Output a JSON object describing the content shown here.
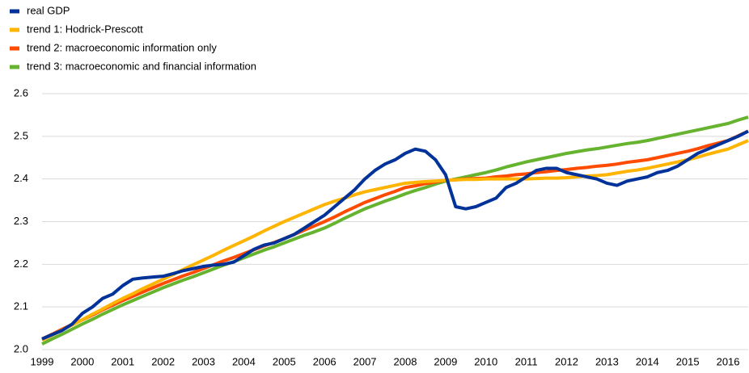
{
  "chart_data": {
    "type": "line",
    "categories": [
      "1999",
      null,
      null,
      null,
      "2000",
      null,
      null,
      null,
      "2001",
      null,
      null,
      null,
      "2002",
      null,
      null,
      null,
      "2003",
      null,
      null,
      null,
      "2004",
      null,
      null,
      null,
      "2005",
      null,
      null,
      null,
      "2006",
      null,
      null,
      null,
      "2007",
      null,
      null,
      null,
      "2008",
      null,
      null,
      null,
      "2009",
      null,
      null,
      null,
      "2010",
      null,
      null,
      null,
      "2011",
      null,
      null,
      null,
      "2012",
      null,
      null,
      null,
      "2013",
      null,
      null,
      null,
      "2014",
      null,
      null,
      null,
      "2015",
      null,
      null,
      null,
      "2016",
      null,
      null
    ],
    "series": [
      {
        "name": "real GDP",
        "color": "#003299",
        "values": [
          2.025,
          2.035,
          2.045,
          2.06,
          2.085,
          2.1,
          2.12,
          2.13,
          2.15,
          2.165,
          2.168,
          2.17,
          2.172,
          2.178,
          2.185,
          2.19,
          2.195,
          2.198,
          2.2,
          2.205,
          2.22,
          2.235,
          2.245,
          2.25,
          2.26,
          2.27,
          2.285,
          2.3,
          2.315,
          2.335,
          2.355,
          2.375,
          2.4,
          2.42,
          2.435,
          2.445,
          2.46,
          2.47,
          2.465,
          2.445,
          2.41,
          2.335,
          2.33,
          2.335,
          2.345,
          2.355,
          2.38,
          2.39,
          2.405,
          2.42,
          2.425,
          2.425,
          2.415,
          2.41,
          2.405,
          2.4,
          2.39,
          2.385,
          2.395,
          2.4,
          2.405,
          2.415,
          2.42,
          2.43,
          2.445,
          2.46,
          2.47,
          2.48,
          2.49,
          2.5,
          2.512
        ]
      },
      {
        "name": "trend 1: Hodrick-Prescott",
        "color": "#ffb400",
        "values": [
          2.022,
          2.034,
          2.046,
          2.058,
          2.07,
          2.083,
          2.095,
          2.108,
          2.12,
          2.131,
          2.143,
          2.154,
          2.165,
          2.176,
          2.188,
          2.199,
          2.21,
          2.221,
          2.233,
          2.244,
          2.255,
          2.266,
          2.278,
          2.289,
          2.3,
          2.31,
          2.32,
          2.33,
          2.34,
          2.348,
          2.355,
          2.363,
          2.37,
          2.375,
          2.38,
          2.385,
          2.39,
          2.392,
          2.394,
          2.395,
          2.397,
          2.398,
          2.399,
          2.399,
          2.4,
          2.4,
          2.4,
          2.4,
          2.4,
          2.401,
          2.402,
          2.402,
          2.403,
          2.405,
          2.407,
          2.408,
          2.41,
          2.414,
          2.418,
          2.421,
          2.425,
          2.43,
          2.435,
          2.44,
          2.445,
          2.451,
          2.458,
          2.464,
          2.47,
          2.48,
          2.49
        ]
      },
      {
        "name": "trend 2: macroeconomic information only",
        "color": "#ff4b00",
        "values": [
          2.025,
          2.036,
          2.048,
          2.059,
          2.07,
          2.081,
          2.093,
          2.104,
          2.115,
          2.125,
          2.135,
          2.145,
          2.155,
          2.164,
          2.173,
          2.181,
          2.19,
          2.199,
          2.208,
          2.216,
          2.225,
          2.234,
          2.243,
          2.251,
          2.26,
          2.27,
          2.28,
          2.29,
          2.3,
          2.311,
          2.323,
          2.334,
          2.345,
          2.354,
          2.363,
          2.371,
          2.38,
          2.384,
          2.389,
          2.393,
          2.397,
          2.398,
          2.4,
          2.401,
          2.402,
          2.405,
          2.407,
          2.41,
          2.412,
          2.415,
          2.417,
          2.42,
          2.422,
          2.425,
          2.427,
          2.43,
          2.432,
          2.435,
          2.439,
          2.442,
          2.445,
          2.45,
          2.455,
          2.46,
          2.465,
          2.471,
          2.478,
          2.484,
          2.49,
          2.501,
          2.512
        ]
      },
      {
        "name": "trend 3: macroeconomic and financial information",
        "color": "#65b32e",
        "values": [
          2.013,
          2.025,
          2.036,
          2.048,
          2.06,
          2.071,
          2.083,
          2.094,
          2.105,
          2.115,
          2.125,
          2.135,
          2.145,
          2.154,
          2.163,
          2.171,
          2.18,
          2.189,
          2.198,
          2.206,
          2.215,
          2.224,
          2.233,
          2.241,
          2.25,
          2.259,
          2.268,
          2.276,
          2.285,
          2.296,
          2.308,
          2.319,
          2.33,
          2.339,
          2.348,
          2.356,
          2.365,
          2.373,
          2.38,
          2.388,
          2.395,
          2.4,
          2.405,
          2.41,
          2.415,
          2.421,
          2.428,
          2.434,
          2.44,
          2.445,
          2.45,
          2.455,
          2.46,
          2.464,
          2.468,
          2.471,
          2.475,
          2.479,
          2.483,
          2.486,
          2.49,
          2.495,
          2.5,
          2.505,
          2.51,
          2.515,
          2.52,
          2.525,
          2.53,
          2.538,
          2.545
        ]
      }
    ],
    "ylim": [
      2.0,
      2.6
    ],
    "yticks": [
      {
        "value": 2,
        "label": "2.0"
      },
      2.1,
      2.2,
      2.3,
      2.4,
      2.5,
      2.6
    ],
    "grid": true,
    "legend": "top-left"
  }
}
